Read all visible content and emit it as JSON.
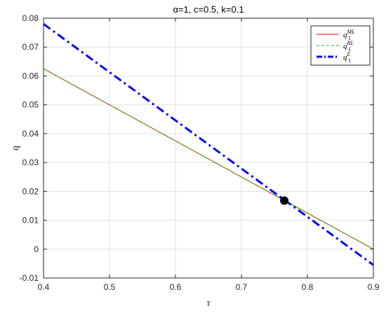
{
  "chart_data": {
    "type": "line",
    "title": "α=1, c=0.5, k=0.1",
    "xlabel": "τ",
    "ylabel": "q",
    "xlim": [
      0.4,
      0.9
    ],
    "ylim": [
      -0.01,
      0.08
    ],
    "xticks": [
      "0.4",
      "0.5",
      "0.6",
      "0.7",
      "0.8",
      "0.9"
    ],
    "yticks": [
      "-0.01",
      "0",
      "0.01",
      "0.02",
      "0.03",
      "0.04",
      "0.05",
      "0.06",
      "0.07",
      "0.08"
    ],
    "grid": true,
    "legend_position": "top-right",
    "series": [
      {
        "label_base": "q",
        "label_sub": "1",
        "label_sup": "ML",
        "color": "#ff0000",
        "style": "solid",
        "x": [
          0.4,
          0.9
        ],
        "y": [
          0.0625,
          0.0
        ]
      },
      {
        "label_base": "q",
        "label_sub": "1",
        "label_sup": "RL",
        "color": "#00c800",
        "style": "dashed",
        "x": [
          0.4,
          0.9
        ],
        "y": [
          0.0625,
          0.0
        ]
      },
      {
        "label_base": "q",
        "label_sub": "1",
        "label_sup": "E",
        "color": "#0000ff",
        "style": "dashdot",
        "x": [
          0.4,
          0.9
        ],
        "y": [
          0.078,
          -0.0055
        ]
      }
    ],
    "marker": {
      "x": 0.765,
      "y": 0.0168,
      "color": "#000000"
    }
  }
}
